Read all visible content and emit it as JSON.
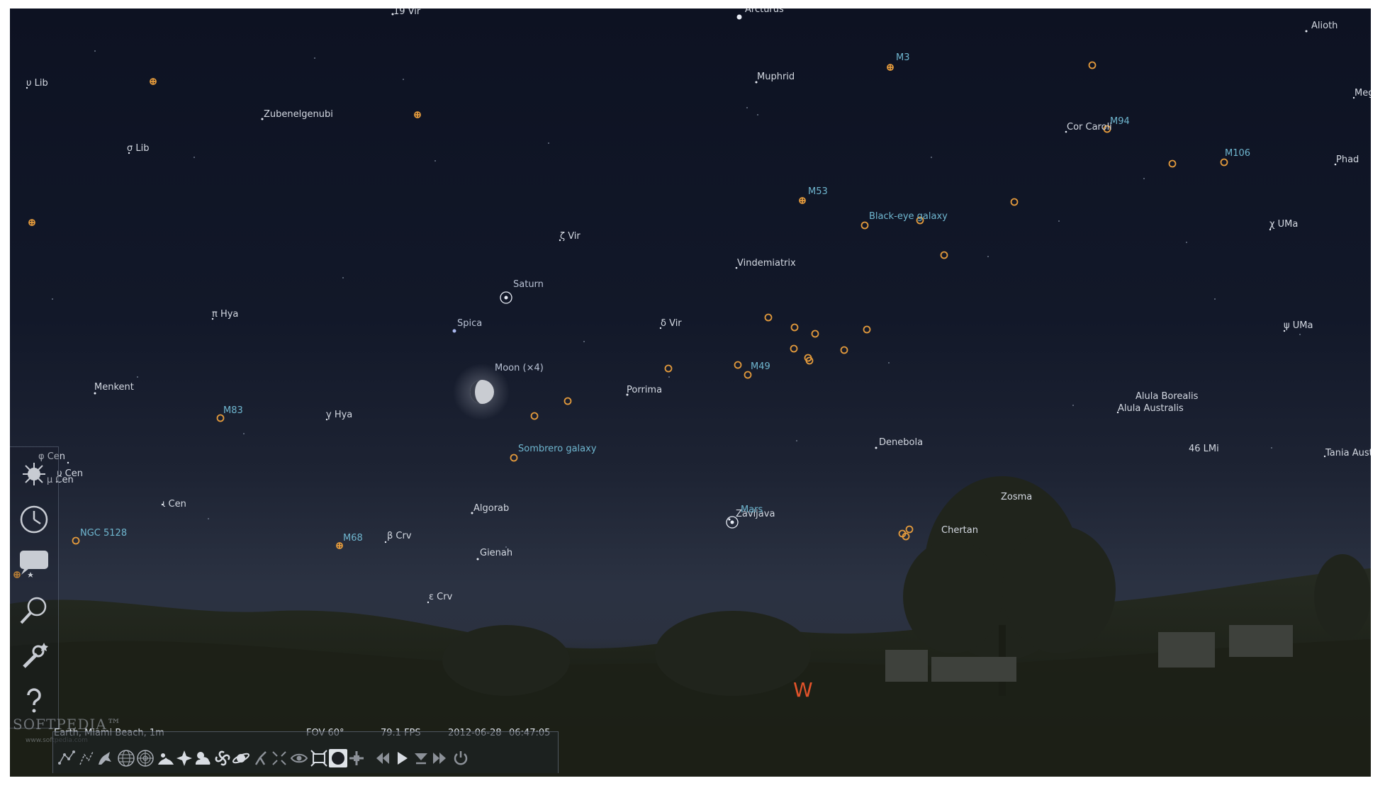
{
  "sky": {
    "stars": [
      {
        "label": "19 Vir"
      },
      {
        "label": "Arcturus"
      },
      {
        "label": "Alioth"
      },
      {
        "label": "υ Lib"
      },
      {
        "label": "Zubenelgenubi"
      },
      {
        "label": "Muphrid"
      },
      {
        "label": "Meg"
      },
      {
        "label": "σ Lib"
      },
      {
        "label": "Cor Caroli"
      },
      {
        "label": "Phad"
      },
      {
        "label": "ζ Vir"
      },
      {
        "label": "Vindemiatrix"
      },
      {
        "label": "χ UMa"
      },
      {
        "label": "π Hya"
      },
      {
        "label": "Spica"
      },
      {
        "label": "δ Vir"
      },
      {
        "label": "ψ UMa"
      },
      {
        "label": "Menkent"
      },
      {
        "label": "Porrima"
      },
      {
        "label": "Alula Borealis"
      },
      {
        "label": "Alula Australis"
      },
      {
        "label": "γ Hya"
      },
      {
        "label": "Denebola"
      },
      {
        "label": "46 LMi"
      },
      {
        "label": "Tania Australis"
      },
      {
        "label": "φ Cen"
      },
      {
        "label": "υ Cen"
      },
      {
        "label": "μ Cen"
      },
      {
        "label": "ι Cen"
      },
      {
        "label": "Algorab"
      },
      {
        "label": "Zavijava"
      },
      {
        "label": "Zosma"
      },
      {
        "label": "β Crv"
      },
      {
        "label": "Chertan"
      },
      {
        "label": "Gienah"
      },
      {
        "label": "ε Crv"
      }
    ],
    "planets": [
      {
        "label": "Saturn"
      },
      {
        "label": "Mars"
      }
    ],
    "moon": {
      "label": "Moon (×4)"
    },
    "deep_sky": [
      {
        "label": "M3"
      },
      {
        "label": "M94"
      },
      {
        "label": "M106"
      },
      {
        "label": "M53"
      },
      {
        "label": "Black-eye galaxy"
      },
      {
        "label": "M49"
      },
      {
        "label": "M83"
      },
      {
        "label": "Sombrero galaxy"
      },
      {
        "label": "NGC 5128"
      },
      {
        "label": "M68"
      }
    ],
    "cardinal": "W"
  },
  "status": {
    "location": "Earth, Miami Beach, 1m",
    "fov": "FOV 60°",
    "fps": "79.1 FPS",
    "date": "2012-06-28",
    "time": "06:47:05"
  },
  "sidebar": {
    "buttons": [
      {
        "icon": "location-window-icon"
      },
      {
        "icon": "date-time-icon"
      },
      {
        "icon": "sky-viewing-options-icon"
      },
      {
        "icon": "search-icon"
      },
      {
        "icon": "configuration-icon"
      },
      {
        "icon": "help-icon"
      }
    ]
  },
  "toolbar": {
    "buttons": [
      {
        "icon": "constellation-lines-icon"
      },
      {
        "icon": "constellation-labels-icon"
      },
      {
        "icon": "constellation-art-icon"
      },
      {
        "icon": "equatorial-grid-icon"
      },
      {
        "icon": "azimuthal-grid-icon"
      },
      {
        "icon": "ground-icon"
      },
      {
        "icon": "cardinal-points-icon"
      },
      {
        "icon": "atmosphere-icon"
      },
      {
        "icon": "nebulae-icon"
      },
      {
        "icon": "planet-labels-icon"
      },
      {
        "icon": "equatorial-mount-icon"
      },
      {
        "icon": "center-object-icon"
      },
      {
        "icon": "night-mode-icon"
      },
      {
        "icon": "full-screen-icon"
      },
      {
        "icon": "sky-culture-icon",
        "active": true
      },
      {
        "icon": "satellites-icon"
      },
      {
        "icon": "decrease-time-speed-icon"
      },
      {
        "icon": "normal-time-rate-icon"
      },
      {
        "icon": "set-time-now-icon"
      },
      {
        "icon": "increase-time-speed-icon"
      },
      {
        "icon": "quit-icon"
      }
    ]
  },
  "watermark": {
    "brand": "SOFTPEDIA™",
    "url": "www.softpedia.com"
  }
}
